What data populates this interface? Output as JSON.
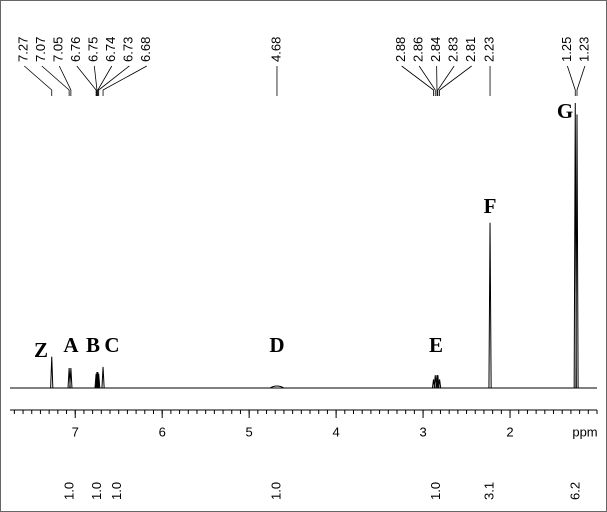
{
  "chart_data": {
    "type": "nmr",
    "x_label": "ppm",
    "xlim": [
      7.75,
      1.0
    ],
    "xticks": [
      7,
      6,
      5,
      4,
      3,
      2
    ],
    "ylim": [
      0,
      100
    ],
    "signals": [
      {
        "label": "Z",
        "ppm": [
          7.27
        ],
        "heights": [
          11
        ]
      },
      {
        "label": "A",
        "ppm": [
          7.07,
          7.05
        ],
        "heights": [
          7,
          7
        ],
        "integral": {
          "value": 1.0,
          "label": "1.0"
        }
      },
      {
        "label": "B",
        "ppm": [
          6.76,
          6.75,
          6.74,
          6.73
        ],
        "heights": [
          5,
          5.6,
          5.6,
          5
        ],
        "integral": {
          "value": 1.0,
          "label": "1.0"
        }
      },
      {
        "label": "C",
        "ppm": [
          6.68
        ],
        "heights": [
          7.4
        ],
        "integral": {
          "value": 1.0,
          "label": "1.0"
        }
      },
      {
        "label": "D",
        "ppm": [
          4.68
        ],
        "heights": [
          0.7
        ],
        "broad": true,
        "integral": {
          "value": 1.0,
          "label": "1.0"
        }
      },
      {
        "label": "E",
        "ppm": [
          2.88,
          2.86,
          2.84,
          2.83,
          2.81
        ],
        "heights": [
          3,
          4.5,
          4.5,
          4.5,
          3
        ],
        "integral": {
          "value": 1.0,
          "label": "1.0"
        }
      },
      {
        "label": "F",
        "ppm": [
          2.23
        ],
        "heights": [
          58
        ],
        "integral": {
          "value": 3.1,
          "label": "3.1"
        }
      },
      {
        "label": "G",
        "ppm": [
          1.25,
          1.23
        ],
        "heights": [
          100,
          96
        ],
        "integral": {
          "value": 6.2,
          "label": "6.2"
        }
      }
    ]
  }
}
